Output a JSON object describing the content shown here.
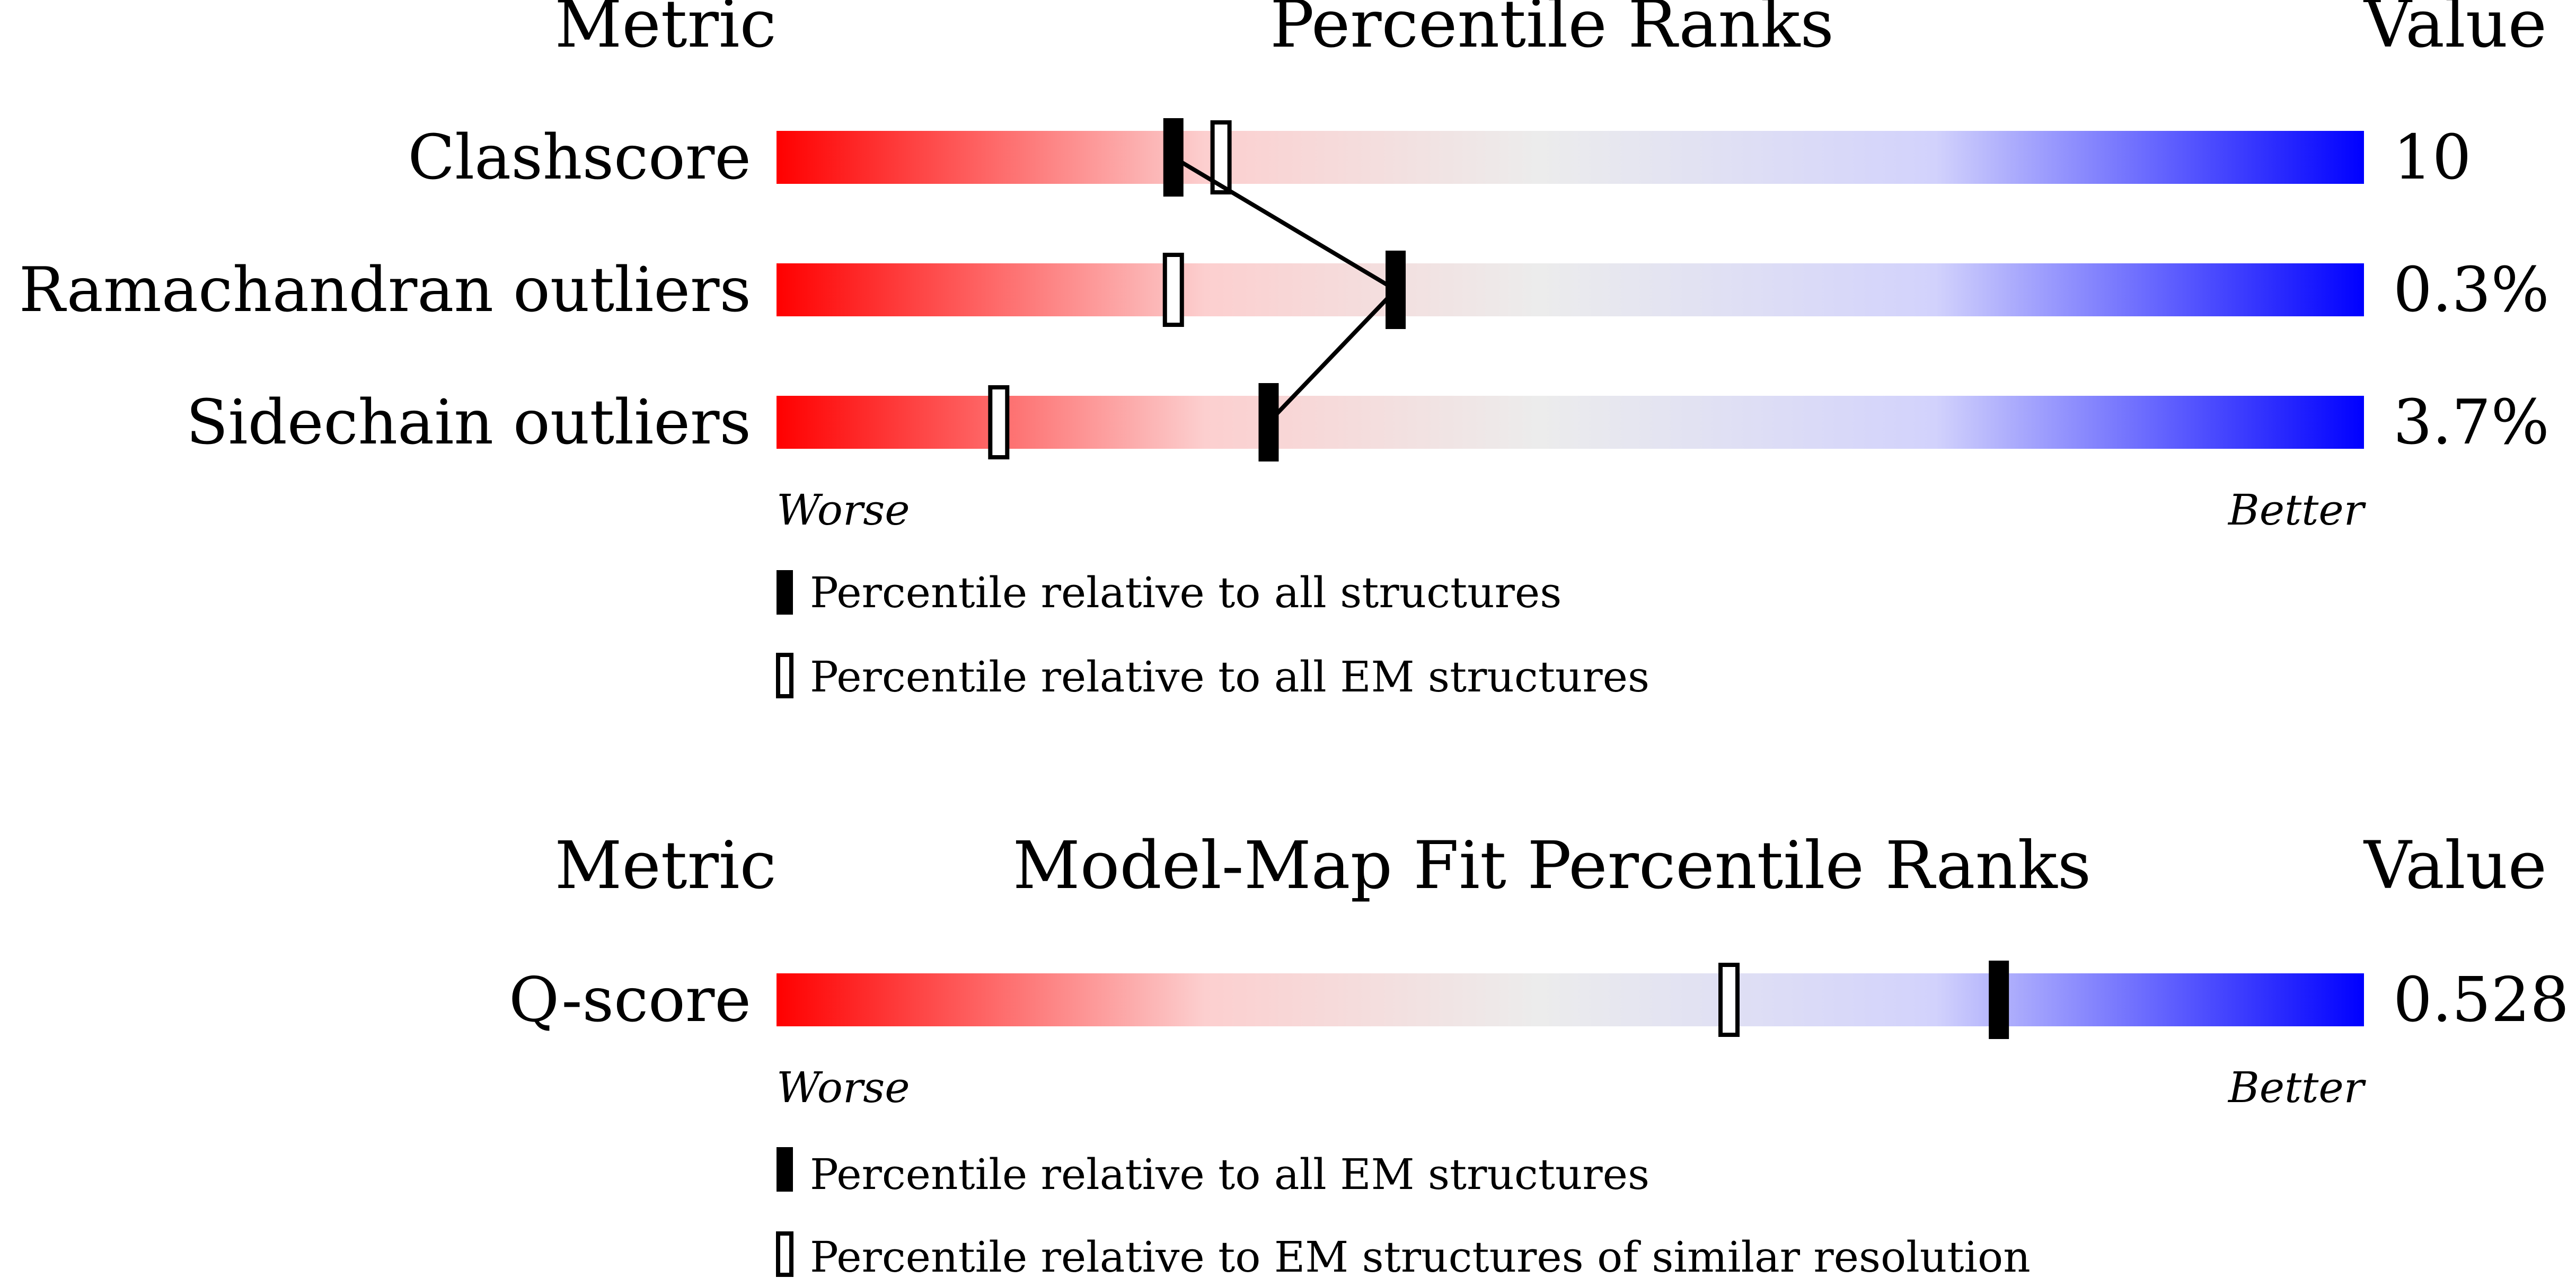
{
  "chart_data": [
    {
      "type": "percentile-bar",
      "title": "Percentile Ranks",
      "metric_header": "Metric",
      "value_header": "Value",
      "x_range": [
        0,
        100
      ],
      "axis_left_label": "Worse",
      "axis_right_label": "Better",
      "rows": [
        {
          "metric": "Clashscore",
          "value": "10",
          "all_pct": 25,
          "em_pct": 28
        },
        {
          "metric": "Ramachandran outliers",
          "value": "0.3%",
          "all_pct": 39,
          "em_pct": 25
        },
        {
          "metric": "Sidechain outliers",
          "value": "3.7%",
          "all_pct": 31,
          "em_pct": 14
        }
      ],
      "legend": [
        {
          "marker": "filled",
          "label": "Percentile relative to all structures"
        },
        {
          "marker": "open",
          "label": "Percentile relative to all EM structures"
        }
      ]
    },
    {
      "type": "percentile-bar",
      "title": "Model-Map Fit Percentile Ranks",
      "metric_header": "Metric",
      "value_header": "Value",
      "x_range": [
        0,
        100
      ],
      "axis_left_label": "Worse",
      "axis_right_label": "Better",
      "rows": [
        {
          "metric": "Q-score",
          "value": "0.528",
          "all_pct": 77,
          "em_pct": 60
        }
      ],
      "legend": [
        {
          "marker": "filled",
          "label": "Percentile relative to all EM structures"
        },
        {
          "marker": "open",
          "label": "Percentile relative to EM structures of similar resolution"
        }
      ]
    }
  ],
  "colors": {
    "worse": "#ff0000",
    "mid": "#eeeeee",
    "better": "#0000ff",
    "marker": "#000000"
  }
}
